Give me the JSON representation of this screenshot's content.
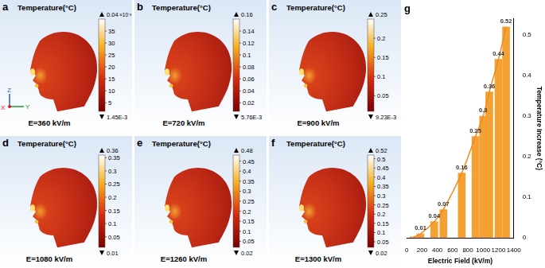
{
  "panels": [
    {
      "label": "a",
      "title": "Temperature(°C)",
      "field_label": "E=360 kV/m",
      "axes_labels": [
        "Z",
        "X",
        "Y"
      ],
      "colorbar": {
        "range": [
          0.00145,
          0.04
        ],
        "range_labels": [
          "1.45E-3",
          "0.04"
        ],
        "exponent": "×10⁻³",
        "ticks": [
          {
            "value": 0.005,
            "label": "5"
          },
          {
            "value": 0.01,
            "label": "10"
          },
          {
            "value": 0.015,
            "label": "15"
          },
          {
            "value": 0.02,
            "label": "20"
          },
          {
            "value": 0.025,
            "label": "25"
          },
          {
            "value": 0.03,
            "label": "30"
          },
          {
            "value": 0.035,
            "label": "35"
          }
        ]
      }
    },
    {
      "label": "b",
      "title": "Temperature(°C)",
      "field_label": "E=720 kV/m",
      "colorbar": {
        "range": [
          0.00576,
          0.16
        ],
        "range_labels": [
          "5.76E-3",
          "0.16"
        ],
        "ticks": [
          0.02,
          0.04,
          0.06,
          0.08,
          0.1,
          0.12,
          0.14
        ]
      }
    },
    {
      "label": "c",
      "title": "Temperature(°C)",
      "field_label": "E=900 kV/m",
      "colorbar": {
        "range": [
          0.00923,
          0.25
        ],
        "range_labels": [
          "9.23E-3",
          "0.25"
        ],
        "ticks": [
          0.05,
          0.1,
          0.15,
          0.2
        ]
      }
    },
    {
      "label": "d",
      "title": "Temperature(°C)",
      "field_label": "E=1080 kV/m",
      "colorbar": {
        "range": [
          0.01,
          0.36
        ],
        "range_labels": [
          "0.01",
          "0.36"
        ],
        "ticks": [
          0.05,
          0.1,
          0.15,
          0.2,
          0.25,
          0.3,
          0.35
        ]
      }
    },
    {
      "label": "e",
      "title": "Temperature(°C)",
      "field_label": "E=1260 kV/m",
      "colorbar": {
        "range": [
          0.02,
          0.48
        ],
        "range_labels": [
          "0.02",
          "0.48"
        ],
        "ticks": [
          0.05,
          0.1,
          0.15,
          0.2,
          0.25,
          0.3,
          0.35,
          0.4,
          0.45
        ]
      }
    },
    {
      "label": "f",
      "title": "Temperature(°C)",
      "field_label": "E=1300 kV/m",
      "colorbar": {
        "range": [
          0.02,
          0.52
        ],
        "range_labels": [
          "0.02",
          "0.52"
        ],
        "ticks": [
          0.05,
          0.1,
          0.15,
          0.2,
          0.25,
          0.3,
          0.35,
          0.4,
          0.45,
          0.5
        ]
      }
    }
  ],
  "chart_data": {
    "type": "bar",
    "title": "g",
    "x_label": "Electric Field (kV/m)",
    "y_label": "Temperature Increase (°C)",
    "x": [
      90,
      180,
      360,
      480,
      720,
      900,
      1000,
      1080,
      1200,
      1300
    ],
    "series": [
      {
        "type": "bar",
        "color": "#f5a033",
        "values": [
          0.0025,
          0.01,
          0.04,
          0.07,
          0.16,
          0.25,
          0.3,
          0.36,
          0.44,
          0.52
        ],
        "value_labels": [
          null,
          "0.01",
          "0.04",
          "0.07",
          "0.16",
          "0.25",
          "0.3",
          "0.36",
          "0.44",
          "0.52"
        ]
      },
      {
        "type": "line",
        "color": "#ee8a1e",
        "values": [
          0.0025,
          0.01,
          0.04,
          0.07,
          0.16,
          0.25,
          0.3,
          0.36,
          0.44,
          0.52
        ]
      }
    ],
    "xlim": [
      0,
      1400
    ],
    "xticks": [
      0,
      200,
      400,
      600,
      800,
      1000,
      1200,
      1400
    ],
    "ylim": [
      0,
      0.54
    ],
    "yticks": [
      0,
      0.1,
      0.2,
      0.3,
      0.4,
      0.5
    ],
    "grid": false,
    "data_labels": true
  }
}
